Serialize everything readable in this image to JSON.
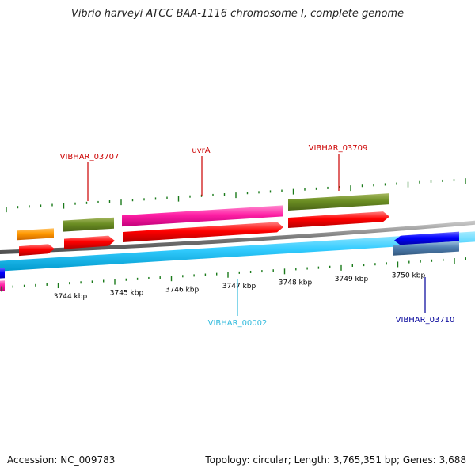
{
  "title": "Vibrio harveyi ATCC BAA-1116 chromosome I, complete genome",
  "footer": {
    "accession": "Accession: NC_009783",
    "info": "Topology: circular; Length: 3,765,351 bp; Genes: 3,688"
  },
  "colors": {
    "backbone": "#808080",
    "tick": "#1a7a1a",
    "plus_cds": "#ff0000",
    "minus_cds": "#00b4ff",
    "label_red": "#cc0000",
    "label_cyan": "#33bbdd",
    "label_blue": "#000099"
  },
  "scale": {
    "ticks": [
      "3744 kbp",
      "3745 kbp",
      "3746 kbp",
      "3747 kbp",
      "3748 kbp",
      "3749 kbp",
      "3750 kbp"
    ]
  },
  "features": [
    {
      "label": "VIBHAR_03707",
      "color": "#cc0000"
    },
    {
      "label": "uvrA",
      "color": "#cc0000"
    },
    {
      "label": "VIBHAR_03709",
      "color": "#cc0000"
    },
    {
      "label": "VIBHAR_00002",
      "color": "#33bbdd"
    },
    {
      "label": "VIBHAR_03710",
      "color": "#000099"
    }
  ]
}
